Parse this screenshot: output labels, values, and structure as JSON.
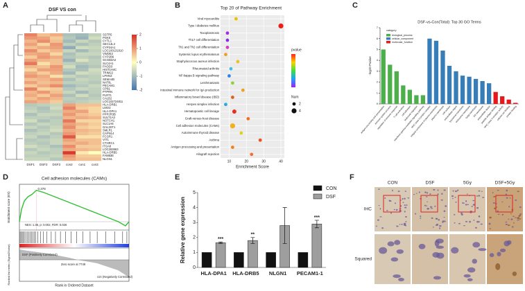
{
  "panel_labels": [
    "A",
    "B",
    "C",
    "D",
    "E",
    "F"
  ],
  "chart_data": [
    {
      "type": "heatmap",
      "title": "DSF VS con",
      "columns": [
        "DSF1",
        "DSF2",
        "DSF3",
        "con2",
        "con1",
        "con3"
      ],
      "rows": [
        "SSTR5",
        "PGK5",
        "CYTL1",
        "SEC14L3",
        "CYP24A1",
        "LOC100131810",
        "VWDE2",
        "CYP2B6",
        "SCGB3A2",
        "SLC4A1",
        "FHOD3",
        "HIST1H4C",
        "TRIM22",
        "LPHN3",
        "SEMA4B",
        "NAT8L",
        "PECAM1",
        "CPB1",
        "PTPRN",
        "PLRT1",
        "CALB2",
        "LOC102724811",
        "HLA-DRB1",
        "LMO3",
        "HLA-DPA1",
        "PPP2R3B",
        "SULT1A3",
        "NOTCH1",
        "SLC1A6",
        "GAL3ST1",
        "SMLR1",
        "CAPN14",
        "FCGR1",
        "VIT1",
        "CTHRC1",
        "ITGA8",
        "LOC283663",
        "HLA-DRB5",
        "FAM83E",
        "NLGN1"
      ],
      "values": [
        [
          1.2,
          0.6,
          0.8,
          -0.9,
          -1.0,
          -0.7
        ],
        [
          1.0,
          0.9,
          0.5,
          -0.8,
          -1.1,
          -0.5
        ],
        [
          0.7,
          1.1,
          0.6,
          -1.0,
          -0.6,
          -0.8
        ],
        [
          0.9,
          0.4,
          1.0,
          -0.7,
          -0.9,
          -0.7
        ],
        [
          0.6,
          0.8,
          0.9,
          -1.2,
          -0.5,
          -0.6
        ],
        [
          1.1,
          0.5,
          0.7,
          -0.6,
          -1.0,
          -0.7
        ],
        [
          0.8,
          0.9,
          0.4,
          -0.9,
          -0.6,
          -0.6
        ],
        [
          0.5,
          1.0,
          0.8,
          -0.8,
          -0.7,
          -0.8
        ],
        [
          0.9,
          0.7,
          0.6,
          -1.1,
          -0.4,
          -0.7
        ],
        [
          1.3,
          0.3,
          0.6,
          -0.7,
          -0.8,
          -0.7
        ],
        [
          0.7,
          0.6,
          1.0,
          -0.5,
          -1.0,
          -0.8
        ],
        [
          0.4,
          0.9,
          0.9,
          -0.8,
          -0.9,
          -0.5
        ],
        [
          0.8,
          0.5,
          0.8,
          -1.0,
          -0.5,
          -0.6
        ],
        [
          1.0,
          0.8,
          0.3,
          -0.6,
          -0.8,
          -0.7
        ],
        [
          0.6,
          0.7,
          0.9,
          -0.9,
          -0.6,
          -0.7
        ],
        [
          0.9,
          0.6,
          0.7,
          -0.7,
          -0.7,
          -0.8
        ],
        [
          0.5,
          0.8,
          1.1,
          -1.0,
          -0.8,
          -0.6
        ],
        [
          1.2,
          0.4,
          0.5,
          -0.8,
          -0.6,
          -0.7
        ],
        [
          0.7,
          1.0,
          0.6,
          -0.6,
          -1.0,
          -0.7
        ],
        [
          0.8,
          0.5,
          0.9,
          -0.9,
          -0.5,
          -0.8
        ],
        [
          0.6,
          0.9,
          0.7,
          -0.7,
          -0.8,
          -0.7
        ],
        [
          0.9,
          0.7,
          0.5,
          -0.8,
          -0.7,
          -0.6
        ],
        [
          -0.8,
          -0.7,
          -0.6,
          0.9,
          0.6,
          0.6
        ],
        [
          -0.7,
          -0.9,
          -0.5,
          1.2,
          0.5,
          0.4
        ],
        [
          -0.6,
          -0.8,
          -0.7,
          0.8,
          0.9,
          0.4
        ],
        [
          -0.9,
          -0.6,
          -0.6,
          1.0,
          0.6,
          0.5
        ],
        [
          -0.7,
          -0.7,
          -0.8,
          0.7,
          0.8,
          0.7
        ],
        [
          -0.5,
          -0.9,
          -0.7,
          1.3,
          0.4,
          0.4
        ],
        [
          -0.8,
          -0.6,
          -0.7,
          0.9,
          0.7,
          0.5
        ],
        [
          -0.6,
          -0.8,
          -0.6,
          1.1,
          0.5,
          0.4
        ],
        [
          -0.9,
          -0.7,
          -0.5,
          0.8,
          0.7,
          0.6
        ],
        [
          -0.7,
          -0.6,
          -0.8,
          1.0,
          0.6,
          0.5
        ],
        [
          -0.6,
          -0.9,
          -0.7,
          1.6,
          0.3,
          0.3
        ],
        [
          -0.8,
          -0.7,
          -0.6,
          0.9,
          0.6,
          0.6
        ],
        [
          -0.7,
          -0.8,
          -0.6,
          0.7,
          0.8,
          0.6
        ],
        [
          -0.5,
          -0.7,
          -0.9,
          1.1,
          0.5,
          0.5
        ],
        [
          -0.8,
          -0.6,
          -0.7,
          0.8,
          0.7,
          0.6
        ],
        [
          -0.6,
          -0.8,
          -0.7,
          1.9,
          0.2,
          0.0
        ],
        [
          -0.7,
          -0.7,
          -0.6,
          1.0,
          0.5,
          0.5
        ],
        [
          -0.6,
          -0.6,
          -0.8,
          0.8,
          0.6,
          0.6
        ]
      ],
      "zlim": [
        -2,
        2
      ],
      "zticks": [
        2,
        1,
        0,
        -1,
        -2
      ]
    },
    {
      "type": "scatter",
      "title": "Top 20 of Pathway Enrichment",
      "x_label": "Enrichment Score",
      "categories": [
        "Viral myocarditis",
        "Type I diabetes mellitus",
        "Toxoplasmosis",
        "Th17 cell differentiation",
        "Th1 and Th2 cell differentiation",
        "Systemic lupus erythematosus",
        "Staphylococcus aureus infection",
        "Rheumatoid arthritis",
        "NF-kappa B signaling pathway",
        "Leishmaniasis",
        "Intestinal immune network for IgA production",
        "Inflammatory bowel disease (IBD)",
        "Herpes simplex infection",
        "Hematopoietic cell lineage",
        "Graft-versus-host disease",
        "Cell adhesion molecules (CAMs)",
        "Autoimmune thyroid disease",
        "Asthma",
        "Antigen processing and presentation",
        "Allograft rejection"
      ],
      "values": [
        14,
        40,
        9,
        9,
        9,
        8,
        15,
        11,
        10,
        12,
        18,
        12,
        8,
        13,
        21,
        12,
        17,
        28,
        12,
        23
      ],
      "sizes": [
        2,
        4,
        2,
        2,
        2,
        2,
        2,
        2,
        2,
        2,
        2,
        2,
        2,
        3,
        2,
        4,
        2,
        2,
        2,
        2
      ],
      "colors": [
        "#e8c400",
        "#e8201a",
        "#a030e0",
        "#8a2be2",
        "#d040c0",
        "#f0a020",
        "#f0c020",
        "#40c0e0",
        "#3080f0",
        "#90d040",
        "#f0a020",
        "#e06020",
        "#2aa8e0",
        "#e83020",
        "#f07020",
        "#f0b020",
        "#e0d020",
        "#f05020",
        "#f08020",
        "#f07030"
      ],
      "xlim": [
        5,
        42
      ],
      "xticks": [
        10,
        20,
        30,
        40
      ],
      "grid": true,
      "colorbar_title": "pvalue",
      "size_title": "Num",
      "size_legend": [
        2,
        4
      ]
    },
    {
      "type": "bar",
      "title": "DSF-vs-Con(Total): Top 30 GO Terms",
      "y_label": "-log10 Pvalue",
      "legend_title": "category",
      "legend": "upper left",
      "ylim": [
        0,
        7
      ],
      "yticks": [
        0,
        1,
        2,
        3,
        4,
        5,
        6,
        7
      ],
      "series": [
        {
          "name": "biological_process",
          "color": "#4daf4a",
          "categories": [
            "antigen processing and presentation",
            "immune system process",
            "regulation of immune response",
            "T cell activation",
            "cell adhesion",
            "leukocyte migration",
            "interferon-gamma-mediated signaling pathway"
          ],
          "values": [
            5.0,
            3.6,
            3.0,
            1.7,
            1.3,
            0.8,
            0.8
          ]
        },
        {
          "name": "cellular_component",
          "color": "#377eb8",
          "categories": [
            "MHC class II protein complex",
            "integral component of plasma membrane",
            "plasma membrane",
            "cell surface",
            "extracellular region",
            "lysosomal membrane",
            "endosome membrane",
            "Golgi membrane",
            "ER membrane",
            "extracellular space"
          ],
          "values": [
            6.0,
            5.8,
            4.9,
            3.5,
            3.0,
            2.6,
            2.5,
            2.3,
            2.1,
            1.9
          ]
        },
        {
          "name": "molecular_function",
          "color": "#e41a1c",
          "categories": [
            "peptide antigen binding",
            "MHC class II receptor activity",
            "calcium ion binding",
            "protein binding"
          ],
          "values": [
            1.1,
            0.7,
            0.4,
            0.1
          ]
        }
      ]
    },
    {
      "type": "line",
      "title": "Cell adhesion molecules (CAMs)",
      "y_label": "Enrichment score (ES)",
      "y2_label": "Ranked list metric (Signal2Noise)",
      "x_label": "Rank in Ordered Dataset",
      "x": [
        0,
        300,
        700,
        1200,
        1800,
        2400,
        3500,
        5000,
        6500,
        8000,
        9500,
        11000,
        12500,
        14000,
        15000,
        15500
      ],
      "values": [
        0,
        0.15,
        0.25,
        0.3,
        0.33,
        0.378,
        0.35,
        0.3,
        0.25,
        0.2,
        0.15,
        0.1,
        0.05,
        0.0,
        -0.05,
        0
      ],
      "hits": [
        100,
        250,
        400,
        520,
        700,
        900,
        1100,
        1300,
        1500,
        1700,
        1900,
        2100,
        2300,
        2600,
        3000,
        3400,
        3900,
        4500,
        5100,
        5800,
        6500,
        7300,
        8100,
        9000,
        10000,
        11000,
        12200,
        13500,
        14600,
        15200
      ],
      "xlim": [
        0,
        15500
      ],
      "ylim": [
        -0.1,
        0.45
      ],
      "color": "#2fc02f",
      "peak_label": "0.378",
      "stats": "NES: 1.35, p: 0.002, FDR: 0.026",
      "positive_label": "DSF (Positively Correlated)",
      "zero_label": "Zero score at 7749",
      "negative_label": "con (Negatively Correlated)"
    },
    {
      "type": "bar",
      "y_label": "Relative gene expression",
      "legend": "upper right",
      "categories": [
        "HLA-DPA1",
        "HLA-DRB5",
        "NLGN1",
        "PECAM1-1"
      ],
      "series": [
        {
          "name": "CON",
          "color": "#111111",
          "values": [
            1,
            1,
            1,
            1
          ]
        },
        {
          "name": "DSF",
          "color": "#9e9e9e",
          "values": [
            1.65,
            1.8,
            2.8,
            2.9
          ],
          "errors": [
            0.05,
            0.2,
            1.2,
            0.25
          ]
        }
      ],
      "significance": [
        "***",
        "**",
        null,
        "***"
      ],
      "ylim": [
        0,
        5
      ],
      "yticks": [
        0,
        1,
        2,
        3,
        4,
        5
      ]
    }
  ],
  "micrographs": {
    "columns": [
      "CON",
      "DSF",
      "5Gy",
      "DSF+5Gy"
    ],
    "rows": [
      "IHC",
      "Squared"
    ]
  }
}
